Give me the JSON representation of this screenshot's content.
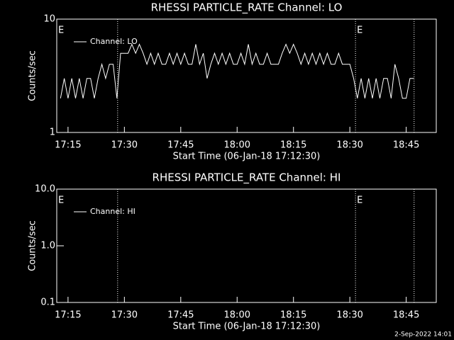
{
  "chart_data": [
    {
      "type": "line",
      "title": "RHESSI PARTICLE_RATE Channel: LO",
      "xlabel": "Start Time (06-Jan-18 17:12:30)",
      "ylabel": "Counts/sec",
      "log_y": true,
      "ylim": [
        1,
        10
      ],
      "yticks": [
        1,
        10
      ],
      "color": "#ffffff",
      "xlim": [
        1032,
        1133
      ],
      "xticks": [
        {
          "value": 1035,
          "label": "17:15"
        },
        {
          "value": 1050,
          "label": "17:30"
        },
        {
          "value": 1065,
          "label": "17:45"
        },
        {
          "value": 1080,
          "label": "18:00"
        },
        {
          "value": 1095,
          "label": "18:15"
        },
        {
          "value": 1110,
          "label": "18:30"
        },
        {
          "value": 1125,
          "label": "18:45"
        }
      ],
      "vlines": [
        1048.2,
        1111.5,
        1127.1
      ],
      "flags": [
        {
          "x": 1032,
          "label": "E"
        },
        {
          "x": 1111.5,
          "label": "E"
        }
      ],
      "x": [
        1033,
        1034,
        1035,
        1036,
        1037,
        1038,
        1039,
        1040,
        1041,
        1042,
        1043,
        1044,
        1045,
        1046,
        1047,
        1048,
        1049,
        1050,
        1051,
        1052,
        1053,
        1054,
        1055,
        1056,
        1057,
        1058,
        1059,
        1060,
        1061,
        1062,
        1063,
        1064,
        1065,
        1066,
        1067,
        1068,
        1069,
        1070,
        1071,
        1072,
        1073,
        1074,
        1075,
        1076,
        1077,
        1078,
        1079,
        1080,
        1081,
        1082,
        1083,
        1084,
        1085,
        1086,
        1087,
        1088,
        1089,
        1090,
        1091,
        1092,
        1093,
        1094,
        1095,
        1096,
        1097,
        1098,
        1099,
        1100,
        1101,
        1102,
        1103,
        1104,
        1105,
        1106,
        1107,
        1108,
        1109,
        1110,
        1111,
        1112,
        1113,
        1114,
        1115,
        1116,
        1117,
        1118,
        1119,
        1120,
        1121,
        1122,
        1123,
        1124,
        1125,
        1126,
        1127
      ],
      "series": [
        {
          "name": "Channel: LO",
          "values": [
            2,
            3,
            2,
            3,
            2,
            3,
            2,
            3,
            3,
            2,
            3,
            4,
            3,
            4,
            4,
            2,
            5,
            5,
            5,
            6,
            5,
            6,
            5,
            4,
            5,
            4,
            5,
            4,
            4,
            5,
            4,
            5,
            4,
            5,
            4,
            4,
            6,
            4,
            5,
            3,
            4,
            5,
            4,
            5,
            4,
            5,
            4,
            4,
            5,
            4,
            6,
            4,
            5,
            4,
            4,
            5,
            4,
            4,
            4,
            5,
            6,
            5,
            6,
            5,
            4,
            5,
            4,
            5,
            4,
            5,
            4,
            5,
            4,
            4,
            5,
            4,
            4,
            4,
            3,
            2,
            3,
            2,
            3,
            2,
            3,
            2,
            3,
            3,
            2,
            4,
            3,
            2,
            2,
            3,
            3
          ]
        }
      ]
    },
    {
      "type": "line",
      "title": "RHESSI PARTICLE_RATE Channel: HI",
      "xlabel": "Start Time (06-Jan-18 17:12:30)",
      "ylabel": "Counts/sec",
      "log_y": true,
      "ylim": [
        0.1,
        10
      ],
      "yticks": [
        0.1,
        {
          "value": 1,
          "label": "1.0"
        },
        {
          "value": 10,
          "label": "10.0"
        }
      ],
      "color": "#ffffff",
      "xlim": [
        1032,
        1133
      ],
      "xticks": [
        {
          "value": 1035,
          "label": "17:15"
        },
        {
          "value": 1050,
          "label": "17:30"
        },
        {
          "value": 1065,
          "label": "17:45"
        },
        {
          "value": 1080,
          "label": "18:00"
        },
        {
          "value": 1095,
          "label": "18:15"
        },
        {
          "value": 1110,
          "label": "18:30"
        },
        {
          "value": 1125,
          "label": "18:45"
        }
      ],
      "vlines": [
        1048.2,
        1111.5,
        1127.1
      ],
      "flags": [
        {
          "x": 1032,
          "label": "E"
        },
        {
          "x": 1111.5,
          "label": "E"
        }
      ],
      "x": [],
      "series": [
        {
          "name": "Channel: HI",
          "values": []
        }
      ]
    }
  ],
  "footer": "2-Sep-2022 14:01"
}
